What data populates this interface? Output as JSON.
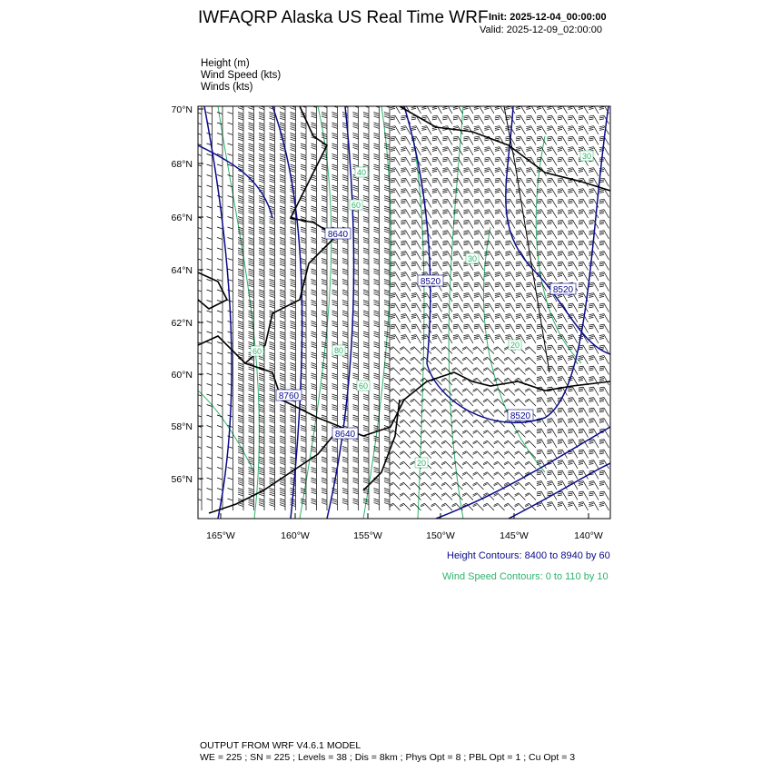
{
  "header": {
    "title": "IWFAQRP Alaska US Real Time WRF",
    "init": "Init: 2025-12-04_00:00:00",
    "valid": "Valid: 2025-12-09_02:00:00"
  },
  "fields": [
    "Height   (m)",
    "Wind Speed   (kts)",
    "Winds   (kts)"
  ],
  "map": {
    "lat_ticks": [
      "70°N",
      "68°N",
      "66°N",
      "64°N",
      "62°N",
      "60°N",
      "58°N",
      "56°N"
    ],
    "lon_ticks": [
      "165°W",
      "160°W",
      "155°W",
      "150°W",
      "145°W",
      "140°W"
    ],
    "height_labels": [
      "8640",
      "8520",
      "8520",
      "8760",
      "8520",
      "8640"
    ],
    "speed_labels": [
      "40",
      "60",
      "30",
      "20",
      "80",
      "60",
      "20",
      "60",
      "30"
    ],
    "colors": {
      "height": "#0a0a8c",
      "speed": "#2eb36b",
      "coast": "#000000",
      "barb": "#000000"
    }
  },
  "legend": {
    "height": "Height Contours: 8400 to 8940 by 60",
    "speed": "Wind Speed Contours: 0 to 110 by 10"
  },
  "footer": {
    "line1": "OUTPUT FROM WRF V4.6.1 MODEL",
    "line2": "WE = 225 ; SN = 225 ; Levels = 38 ; Dis = 8km ; Phys Opt = 8 ; PBL Opt = 1 ; Cu Opt = 3"
  }
}
